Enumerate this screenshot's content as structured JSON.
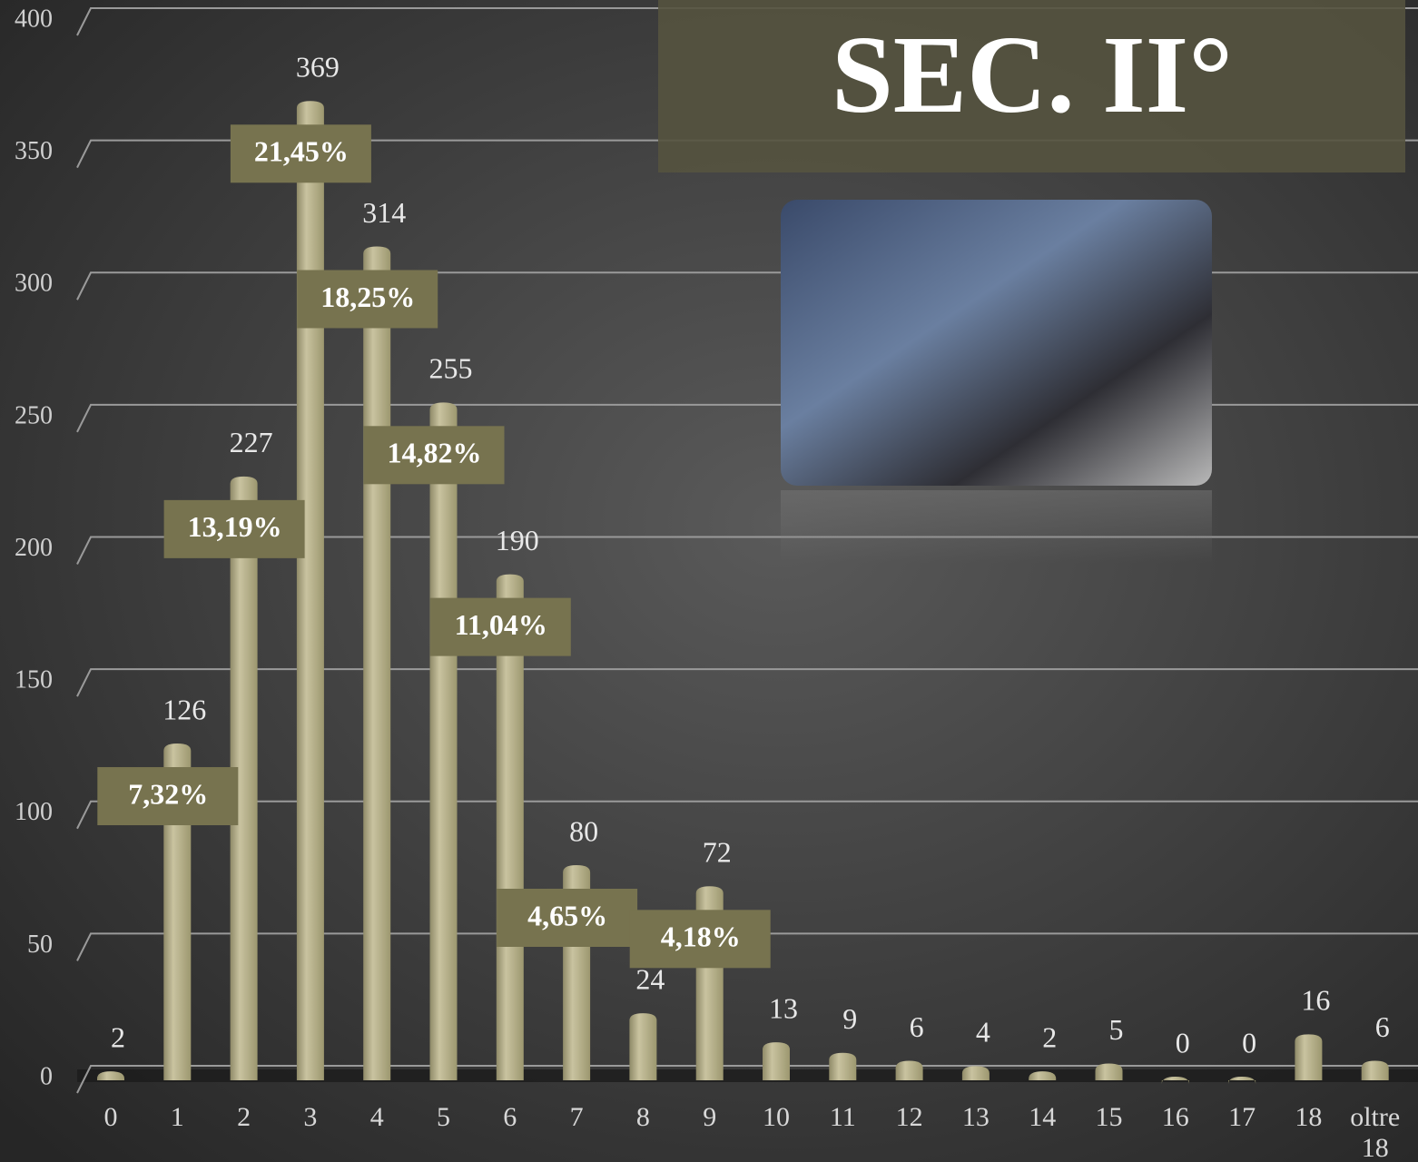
{
  "chart_data": {
    "type": "bar",
    "title": "SEC. II°",
    "categories": [
      "0",
      "1",
      "2",
      "3",
      "4",
      "5",
      "6",
      "7",
      "8",
      "9",
      "10",
      "11",
      "12",
      "13",
      "14",
      "15",
      "16",
      "17",
      "18",
      "oltre 18"
    ],
    "values": [
      2,
      126,
      227,
      369,
      314,
      255,
      190,
      80,
      24,
      72,
      13,
      9,
      6,
      4,
      2,
      5,
      0,
      0,
      16,
      6
    ],
    "percent_labels": [
      null,
      "7,32%",
      "13,19%",
      "21,45%",
      "18,25%",
      "14,82%",
      "11,04%",
      "4,65%",
      null,
      "4,18%",
      null,
      null,
      null,
      null,
      null,
      null,
      null,
      null,
      null,
      null
    ],
    "color": "#b8b28e",
    "ylim": [
      0,
      400
    ],
    "yticks": [
      0,
      50,
      100,
      150,
      200,
      250,
      300,
      350,
      400
    ],
    "grid": true
  }
}
